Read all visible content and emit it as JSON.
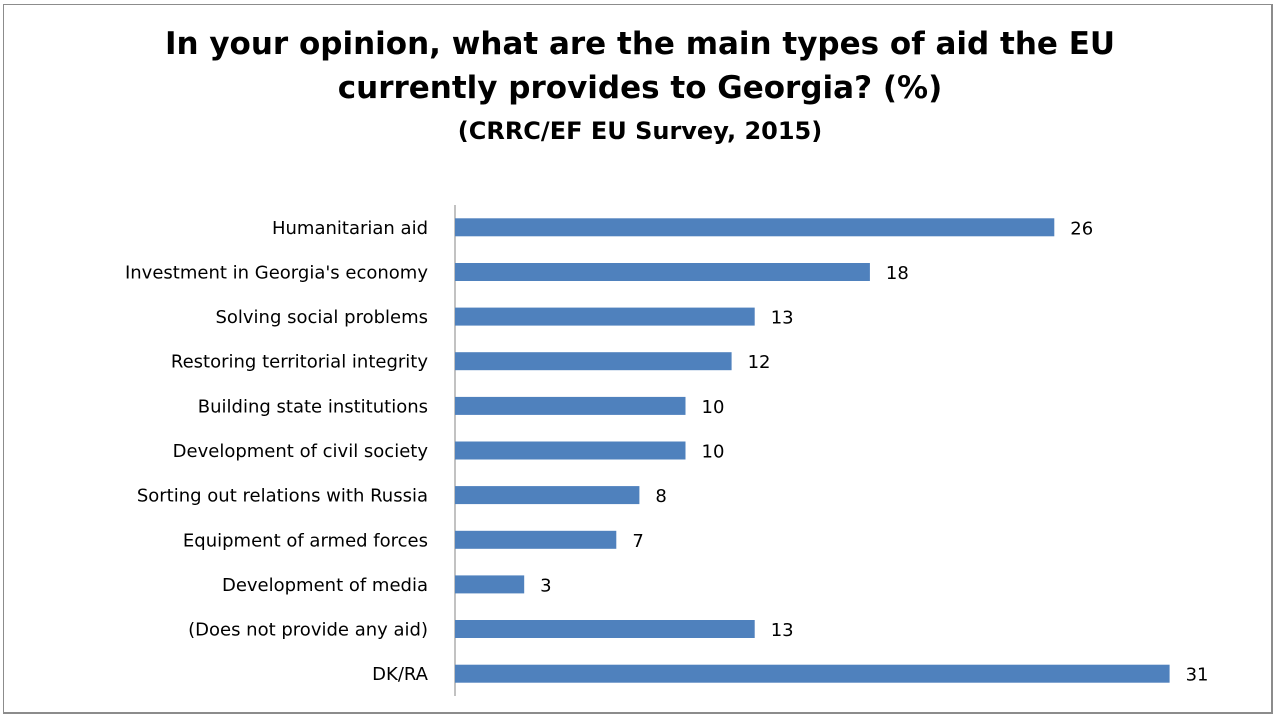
{
  "chart_data": {
    "type": "bar",
    "orientation": "horizontal",
    "title_lines": [
      "In your opinion, what are the main types of aid the EU",
      "currently provides to Georgia? (%)"
    ],
    "subtitle": "(CRRC/EF EU Survey, 2015)",
    "categories": [
      "Humanitarian aid",
      "Investment in Georgia's economy",
      "Solving social problems",
      "Restoring territorial integrity",
      "Building state institutions",
      "Development of civil society",
      "Sorting out relations with Russia",
      "Equipment of armed forces",
      "Development of media",
      "(Does not provide any aid)",
      "DK/RA"
    ],
    "values": [
      26,
      18,
      13,
      12,
      10,
      10,
      8,
      7,
      3,
      13,
      31
    ],
    "xlim": [
      0,
      35
    ],
    "xlabel": "",
    "ylabel": "",
    "grid": false,
    "bar_color": "#4f81bd"
  }
}
